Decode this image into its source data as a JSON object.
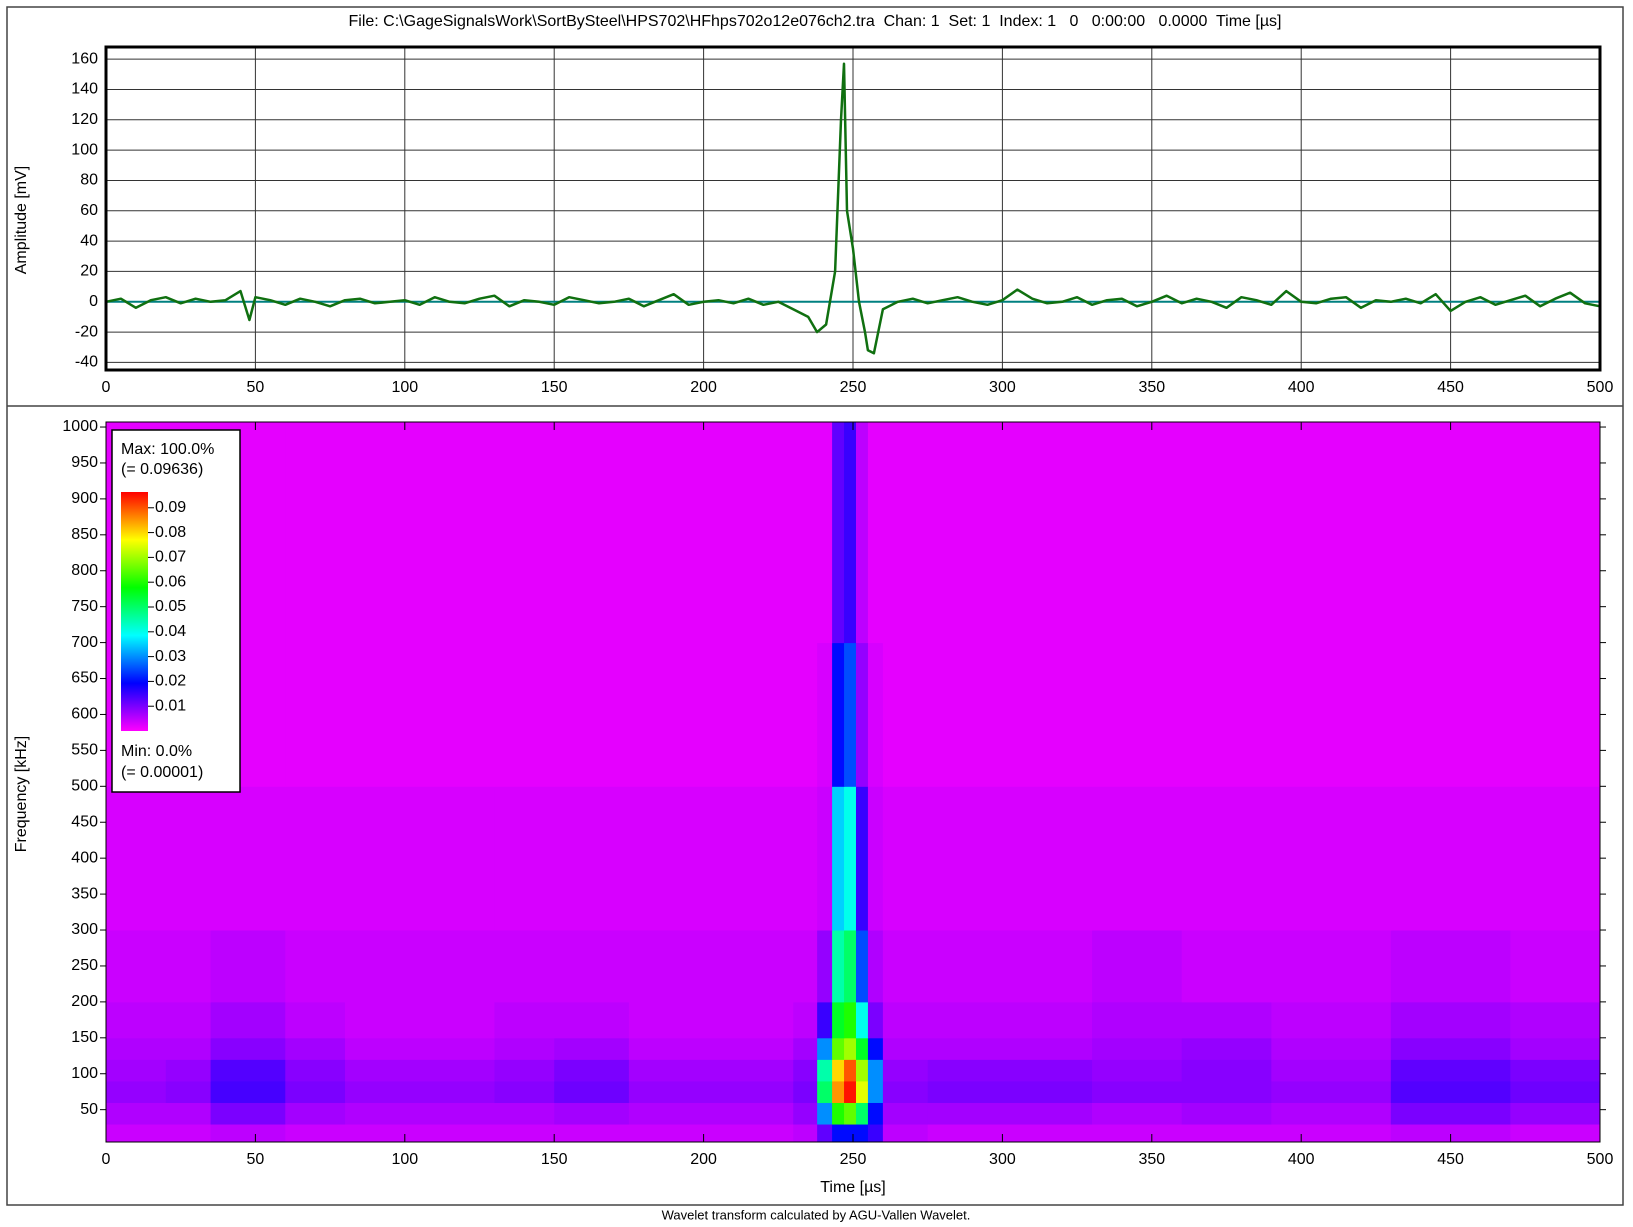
{
  "chart_data": [
    {
      "type": "line",
      "title": "File: C:\\GageSignalsWork\\SortBySteel\\HPS702\\HFhps702o12e076ch2.tra  Chan: 1  Set: 1  Index: 1   0   0:00:00   0.0000  Time [µs]",
      "y_label": "Amplitude [mV]",
      "xlim": [
        0,
        500
      ],
      "xticks": [
        0,
        50,
        100,
        150,
        200,
        250,
        300,
        350,
        400,
        450,
        500
      ],
      "ylim": [
        -45,
        168
      ],
      "yticks": [
        -40,
        -20,
        0,
        20,
        40,
        60,
        80,
        100,
        120,
        140,
        160
      ],
      "grid": true,
      "hline": 0,
      "hline_color": "#008080",
      "series": [
        {
          "color": "#107010",
          "x": [
            0,
            5,
            10,
            15,
            20,
            25,
            30,
            35,
            40,
            45,
            48,
            50,
            55,
            60,
            65,
            70,
            75,
            80,
            85,
            90,
            95,
            100,
            105,
            110,
            115,
            120,
            125,
            130,
            135,
            140,
            145,
            150,
            155,
            160,
            165,
            170,
            175,
            180,
            185,
            190,
            195,
            200,
            205,
            210,
            215,
            220,
            225,
            230,
            235,
            238,
            241,
            244,
            246,
            247,
            248,
            250,
            252,
            254,
            255,
            257,
            260,
            265,
            270,
            275,
            280,
            285,
            290,
            295,
            300,
            305,
            310,
            315,
            320,
            325,
            330,
            335,
            340,
            345,
            350,
            355,
            360,
            365,
            370,
            375,
            380,
            385,
            390,
            395,
            400,
            405,
            410,
            415,
            420,
            425,
            430,
            435,
            440,
            445,
            450,
            455,
            460,
            465,
            470,
            475,
            480,
            485,
            490,
            495,
            500
          ],
          "values": [
            0,
            2,
            -4,
            1,
            3,
            -1,
            2,
            0,
            1,
            7,
            -12,
            3,
            1,
            -2,
            2,
            0,
            -3,
            1,
            2,
            -1,
            0,
            1,
            -2,
            3,
            0,
            -1,
            2,
            4,
            -3,
            1,
            0,
            -2,
            3,
            1,
            -1,
            0,
            2,
            -3,
            1,
            5,
            -2,
            0,
            1,
            -1,
            2,
            -2,
            0,
            -5,
            -10,
            -20,
            -15,
            20,
            120,
            157,
            60,
            35,
            0,
            -20,
            -32,
            -34,
            -5,
            0,
            2,
            -1,
            1,
            3,
            0,
            -2,
            1,
            8,
            2,
            -1,
            0,
            3,
            -2,
            1,
            2,
            -3,
            0,
            4,
            -1,
            2,
            0,
            -4,
            3,
            1,
            -2,
            7,
            0,
            -1,
            2,
            3,
            -4,
            1,
            0,
            2,
            -1,
            5,
            -6,
            0,
            3,
            -2,
            1,
            4,
            -3,
            2,
            6,
            -1,
            -3
          ]
        }
      ]
    },
    {
      "type": "heatmap",
      "x_label": "Time [µs]",
      "y_label": "Frequency [kHz]",
      "xlim": [
        0,
        500
      ],
      "xticks": [
        0,
        50,
        100,
        150,
        200,
        250,
        300,
        350,
        400,
        450,
        500
      ],
      "ylim": [
        5,
        1007
      ],
      "yticks": [
        50,
        100,
        150,
        200,
        250,
        300,
        350,
        400,
        450,
        500,
        550,
        600,
        650,
        700,
        750,
        800,
        850,
        900,
        950,
        1000
      ],
      "x_edges": [
        0,
        20,
        35,
        60,
        80,
        130,
        150,
        175,
        230,
        238,
        243,
        247,
        251,
        255,
        260,
        275,
        330,
        360,
        390,
        430,
        470,
        500
      ],
      "y_edges": [
        5,
        30,
        60,
        90,
        120,
        150,
        200,
        300,
        500,
        700,
        1007
      ],
      "z": [
        [
          0.004,
          0.004,
          0.005,
          0.004,
          0.004,
          0.004,
          0.004,
          0.004,
          0.005,
          0.012,
          0.02,
          0.02,
          0.02,
          0.015,
          0.005,
          0.004,
          0.004,
          0.004,
          0.004,
          0.005,
          0.004
        ],
        [
          0.006,
          0.006,
          0.01,
          0.007,
          0.006,
          0.006,
          0.007,
          0.006,
          0.008,
          0.03,
          0.06,
          0.065,
          0.05,
          0.02,
          0.007,
          0.007,
          0.006,
          0.007,
          0.006,
          0.01,
          0.008
        ],
        [
          0.008,
          0.009,
          0.014,
          0.01,
          0.008,
          0.009,
          0.011,
          0.008,
          0.01,
          0.05,
          0.085,
          0.095,
          0.075,
          0.03,
          0.009,
          0.01,
          0.009,
          0.009,
          0.008,
          0.013,
          0.011
        ],
        [
          0.007,
          0.008,
          0.013,
          0.009,
          0.007,
          0.008,
          0.01,
          0.007,
          0.009,
          0.045,
          0.08,
          0.09,
          0.07,
          0.03,
          0.008,
          0.009,
          0.008,
          0.009,
          0.007,
          0.012,
          0.01
        ],
        [
          0.006,
          0.006,
          0.009,
          0.007,
          0.005,
          0.006,
          0.007,
          0.005,
          0.007,
          0.03,
          0.065,
          0.07,
          0.055,
          0.02,
          0.006,
          0.006,
          0.007,
          0.008,
          0.006,
          0.009,
          0.007
        ],
        [
          0.005,
          0.005,
          0.007,
          0.005,
          0.004,
          0.005,
          0.005,
          0.004,
          0.005,
          0.015,
          0.055,
          0.06,
          0.04,
          0.01,
          0.005,
          0.005,
          0.006,
          0.006,
          0.005,
          0.007,
          0.006
        ],
        [
          0.004,
          0.004,
          0.005,
          0.004,
          0.004,
          0.004,
          0.004,
          0.004,
          0.004,
          0.008,
          0.045,
          0.05,
          0.025,
          0.006,
          0.004,
          0.004,
          0.005,
          0.004,
          0.004,
          0.005,
          0.004
        ],
        [
          0.003,
          0.003,
          0.003,
          0.003,
          0.003,
          0.003,
          0.003,
          0.003,
          0.003,
          0.004,
          0.035,
          0.04,
          0.015,
          0.004,
          0.003,
          0.003,
          0.003,
          0.003,
          0.003,
          0.003,
          0.003
        ],
        [
          0.002,
          0.002,
          0.002,
          0.002,
          0.002,
          0.002,
          0.002,
          0.002,
          0.002,
          0.003,
          0.02,
          0.025,
          0.008,
          0.003,
          0.002,
          0.002,
          0.002,
          0.002,
          0.002,
          0.002,
          0.002
        ],
        [
          0.002,
          0.002,
          0.002,
          0.002,
          0.002,
          0.002,
          0.002,
          0.002,
          0.002,
          0.002,
          0.012,
          0.015,
          0.005,
          0.002,
          0.002,
          0.002,
          0.002,
          0.002,
          0.002,
          0.002,
          0.002
        ]
      ],
      "zlim": [
        1e-05,
        0.09636
      ],
      "colorscale": [
        "#ff00ff",
        "#0000ff",
        "#00ffff",
        "#00ff00",
        "#ffff00",
        "#ff0000"
      ],
      "colorbar_ticks": [
        0.01,
        0.02,
        0.03,
        0.04,
        0.05,
        0.06,
        0.07,
        0.08,
        0.09
      ],
      "colorbar_max_label": "Max: 100.0%",
      "colorbar_max_value": "(= 0.09636)",
      "colorbar_min_label": "Min: 0.0%",
      "colorbar_min_value": "(= 0.00001)"
    }
  ],
  "footer": "Wavelet transform calculated by AGU-Vallen Wavelet."
}
